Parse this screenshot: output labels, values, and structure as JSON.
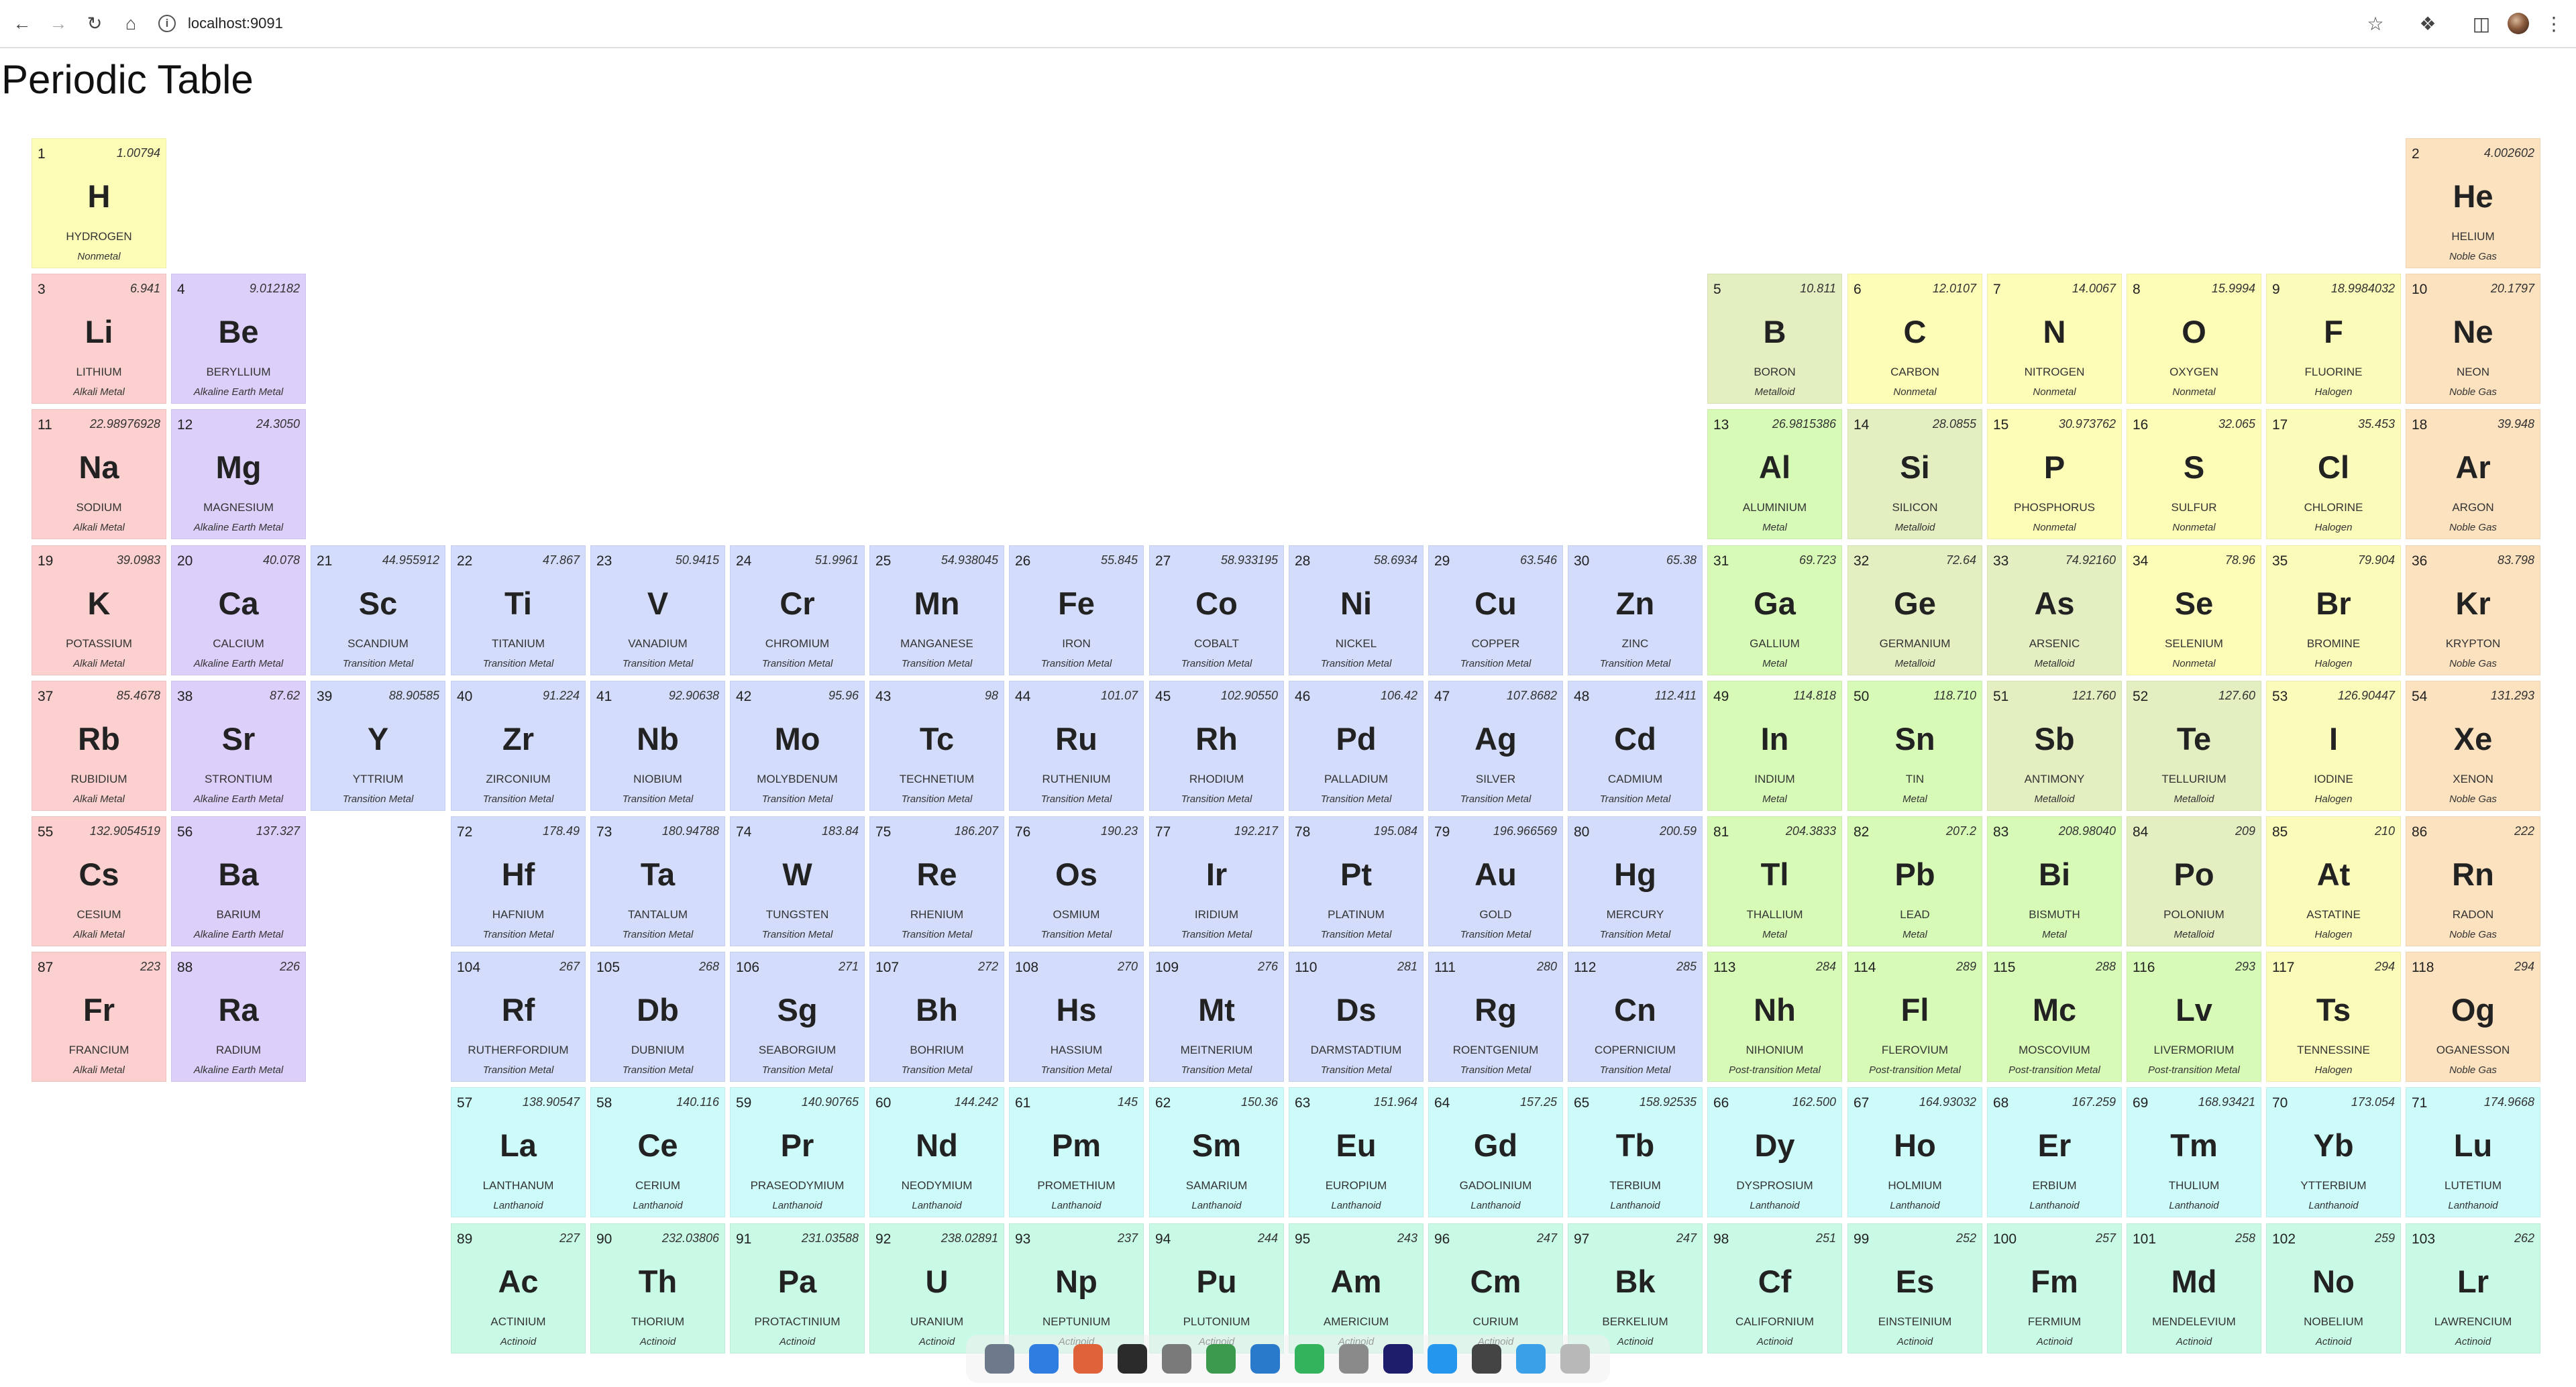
{
  "browser": {
    "url": "localhost:9091",
    "icons": {
      "back": "back-arrow-icon",
      "forward": "forward-arrow-icon",
      "reload": "reload-icon",
      "home": "home-icon",
      "site_info": "site-info-icon",
      "bookmark": "star-icon",
      "extensions": "puzzle-icon",
      "side_panel": "side-panel-icon",
      "profile": "avatar",
      "menu": "kebab-menu-icon"
    }
  },
  "page": {
    "title": "Periodic Table"
  },
  "category_colors": {
    "Nonmetal": "#fdfdb8",
    "Noble Gas": "#fde2bf",
    "Alkali Metal": "#fbd0ce",
    "Alkaline Earth Metal": "#dcd0fa",
    "Transition Metal": "#d3dcfb",
    "Metalloid": "#e3eec1",
    "Metal": "#d7fbb6",
    "Halogen": "#fbfcb9",
    "Post-transition Metal": "#d7fbb6",
    "Lanthanoid": "#ccfbf9",
    "Actinoid": "#c9fae6"
  },
  "elements": [
    {
      "n": "1",
      "s": "H",
      "name": "HYDROGEN",
      "m": "1.00794",
      "c": "Nonmetal",
      "g": 1,
      "p": 1
    },
    {
      "n": "2",
      "s": "He",
      "name": "HELIUM",
      "m": "4.002602",
      "c": "Noble Gas",
      "g": 18,
      "p": 1
    },
    {
      "n": "3",
      "s": "Li",
      "name": "LITHIUM",
      "m": "6.941",
      "c": "Alkali Metal",
      "g": 1,
      "p": 2
    },
    {
      "n": "4",
      "s": "Be",
      "name": "BERYLLIUM",
      "m": "9.012182",
      "c": "Alkaline Earth Metal",
      "g": 2,
      "p": 2
    },
    {
      "n": "5",
      "s": "B",
      "name": "BORON",
      "m": "10.811",
      "c": "Metalloid",
      "g": 13,
      "p": 2
    },
    {
      "n": "6",
      "s": "C",
      "name": "CARBON",
      "m": "12.0107",
      "c": "Nonmetal",
      "g": 14,
      "p": 2
    },
    {
      "n": "7",
      "s": "N",
      "name": "NITROGEN",
      "m": "14.0067",
      "c": "Nonmetal",
      "g": 15,
      "p": 2
    },
    {
      "n": "8",
      "s": "O",
      "name": "OXYGEN",
      "m": "15.9994",
      "c": "Nonmetal",
      "g": 16,
      "p": 2
    },
    {
      "n": "9",
      "s": "F",
      "name": "FLUORINE",
      "m": "18.9984032",
      "c": "Halogen",
      "g": 17,
      "p": 2
    },
    {
      "n": "10",
      "s": "Ne",
      "name": "NEON",
      "m": "20.1797",
      "c": "Noble Gas",
      "g": 18,
      "p": 2
    },
    {
      "n": "11",
      "s": "Na",
      "name": "SODIUM",
      "m": "22.98976928",
      "c": "Alkali Metal",
      "g": 1,
      "p": 3
    },
    {
      "n": "12",
      "s": "Mg",
      "name": "MAGNESIUM",
      "m": "24.3050",
      "c": "Alkaline Earth Metal",
      "g": 2,
      "p": 3
    },
    {
      "n": "13",
      "s": "Al",
      "name": "ALUMINIUM",
      "m": "26.9815386",
      "c": "Metal",
      "g": 13,
      "p": 3
    },
    {
      "n": "14",
      "s": "Si",
      "name": "SILICON",
      "m": "28.0855",
      "c": "Metalloid",
      "g": 14,
      "p": 3
    },
    {
      "n": "15",
      "s": "P",
      "name": "PHOSPHORUS",
      "m": "30.973762",
      "c": "Nonmetal",
      "g": 15,
      "p": 3
    },
    {
      "n": "16",
      "s": "S",
      "name": "SULFUR",
      "m": "32.065",
      "c": "Nonmetal",
      "g": 16,
      "p": 3
    },
    {
      "n": "17",
      "s": "Cl",
      "name": "CHLORINE",
      "m": "35.453",
      "c": "Halogen",
      "g": 17,
      "p": 3
    },
    {
      "n": "18",
      "s": "Ar",
      "name": "ARGON",
      "m": "39.948",
      "c": "Noble Gas",
      "g": 18,
      "p": 3
    },
    {
      "n": "19",
      "s": "K",
      "name": "POTASSIUM",
      "m": "39.0983",
      "c": "Alkali Metal",
      "g": 1,
      "p": 4
    },
    {
      "n": "20",
      "s": "Ca",
      "name": "CALCIUM",
      "m": "40.078",
      "c": "Alkaline Earth Metal",
      "g": 2,
      "p": 4
    },
    {
      "n": "21",
      "s": "Sc",
      "name": "SCANDIUM",
      "m": "44.955912",
      "c": "Transition Metal",
      "g": 3,
      "p": 4
    },
    {
      "n": "22",
      "s": "Ti",
      "name": "TITANIUM",
      "m": "47.867",
      "c": "Transition Metal",
      "g": 4,
      "p": 4
    },
    {
      "n": "23",
      "s": "V",
      "name": "VANADIUM",
      "m": "50.9415",
      "c": "Transition Metal",
      "g": 5,
      "p": 4
    },
    {
      "n": "24",
      "s": "Cr",
      "name": "CHROMIUM",
      "m": "51.9961",
      "c": "Transition Metal",
      "g": 6,
      "p": 4
    },
    {
      "n": "25",
      "s": "Mn",
      "name": "MANGANESE",
      "m": "54.938045",
      "c": "Transition Metal",
      "g": 7,
      "p": 4
    },
    {
      "n": "26",
      "s": "Fe",
      "name": "IRON",
      "m": "55.845",
      "c": "Transition Metal",
      "g": 8,
      "p": 4
    },
    {
      "n": "27",
      "s": "Co",
      "name": "COBALT",
      "m": "58.933195",
      "c": "Transition Metal",
      "g": 9,
      "p": 4
    },
    {
      "n": "28",
      "s": "Ni",
      "name": "NICKEL",
      "m": "58.6934",
      "c": "Transition Metal",
      "g": 10,
      "p": 4
    },
    {
      "n": "29",
      "s": "Cu",
      "name": "COPPER",
      "m": "63.546",
      "c": "Transition Metal",
      "g": 11,
      "p": 4
    },
    {
      "n": "30",
      "s": "Zn",
      "name": "ZINC",
      "m": "65.38",
      "c": "Transition Metal",
      "g": 12,
      "p": 4
    },
    {
      "n": "31",
      "s": "Ga",
      "name": "GALLIUM",
      "m": "69.723",
      "c": "Metal",
      "g": 13,
      "p": 4
    },
    {
      "n": "32",
      "s": "Ge",
      "name": "GERMANIUM",
      "m": "72.64",
      "c": "Metalloid",
      "g": 14,
      "p": 4
    },
    {
      "n": "33",
      "s": "As",
      "name": "ARSENIC",
      "m": "74.92160",
      "c": "Metalloid",
      "g": 15,
      "p": 4
    },
    {
      "n": "34",
      "s": "Se",
      "name": "SELENIUM",
      "m": "78.96",
      "c": "Nonmetal",
      "g": 16,
      "p": 4
    },
    {
      "n": "35",
      "s": "Br",
      "name": "BROMINE",
      "m": "79.904",
      "c": "Halogen",
      "g": 17,
      "p": 4
    },
    {
      "n": "36",
      "s": "Kr",
      "name": "KRYPTON",
      "m": "83.798",
      "c": "Noble Gas",
      "g": 18,
      "p": 4
    },
    {
      "n": "37",
      "s": "Rb",
      "name": "RUBIDIUM",
      "m": "85.4678",
      "c": "Alkali Metal",
      "g": 1,
      "p": 5
    },
    {
      "n": "38",
      "s": "Sr",
      "name": "STRONTIUM",
      "m": "87.62",
      "c": "Alkaline Earth Metal",
      "g": 2,
      "p": 5
    },
    {
      "n": "39",
      "s": "Y",
      "name": "YTTRIUM",
      "m": "88.90585",
      "c": "Transition Metal",
      "g": 3,
      "p": 5
    },
    {
      "n": "40",
      "s": "Zr",
      "name": "ZIRCONIUM",
      "m": "91.224",
      "c": "Transition Metal",
      "g": 4,
      "p": 5
    },
    {
      "n": "41",
      "s": "Nb",
      "name": "NIOBIUM",
      "m": "92.90638",
      "c": "Transition Metal",
      "g": 5,
      "p": 5
    },
    {
      "n": "42",
      "s": "Mo",
      "name": "MOLYBDENUM",
      "m": "95.96",
      "c": "Transition Metal",
      "g": 6,
      "p": 5
    },
    {
      "n": "43",
      "s": "Tc",
      "name": "TECHNETIUM",
      "m": "98",
      "c": "Transition Metal",
      "g": 7,
      "p": 5
    },
    {
      "n": "44",
      "s": "Ru",
      "name": "RUTHENIUM",
      "m": "101.07",
      "c": "Transition Metal",
      "g": 8,
      "p": 5
    },
    {
      "n": "45",
      "s": "Rh",
      "name": "RHODIUM",
      "m": "102.90550",
      "c": "Transition Metal",
      "g": 9,
      "p": 5
    },
    {
      "n": "46",
      "s": "Pd",
      "name": "PALLADIUM",
      "m": "106.42",
      "c": "Transition Metal",
      "g": 10,
      "p": 5
    },
    {
      "n": "47",
      "s": "Ag",
      "name": "SILVER",
      "m": "107.8682",
      "c": "Transition Metal",
      "g": 11,
      "p": 5
    },
    {
      "n": "48",
      "s": "Cd",
      "name": "CADMIUM",
      "m": "112.411",
      "c": "Transition Metal",
      "g": 12,
      "p": 5
    },
    {
      "n": "49",
      "s": "In",
      "name": "INDIUM",
      "m": "114.818",
      "c": "Metal",
      "g": 13,
      "p": 5
    },
    {
      "n": "50",
      "s": "Sn",
      "name": "TIN",
      "m": "118.710",
      "c": "Metal",
      "g": 14,
      "p": 5
    },
    {
      "n": "51",
      "s": "Sb",
      "name": "ANTIMONY",
      "m": "121.760",
      "c": "Metalloid",
      "g": 15,
      "p": 5
    },
    {
      "n": "52",
      "s": "Te",
      "name": "TELLURIUM",
      "m": "127.60",
      "c": "Metalloid",
      "g": 16,
      "p": 5
    },
    {
      "n": "53",
      "s": "I",
      "name": "IODINE",
      "m": "126.90447",
      "c": "Halogen",
      "g": 17,
      "p": 5
    },
    {
      "n": "54",
      "s": "Xe",
      "name": "XENON",
      "m": "131.293",
      "c": "Noble Gas",
      "g": 18,
      "p": 5
    },
    {
      "n": "55",
      "s": "Cs",
      "name": "CESIUM",
      "m": "132.9054519",
      "c": "Alkali Metal",
      "g": 1,
      "p": 6
    },
    {
      "n": "56",
      "s": "Ba",
      "name": "BARIUM",
      "m": "137.327",
      "c": "Alkaline Earth Metal",
      "g": 2,
      "p": 6
    },
    {
      "n": "72",
      "s": "Hf",
      "name": "HAFNIUM",
      "m": "178.49",
      "c": "Transition Metal",
      "g": 4,
      "p": 6
    },
    {
      "n": "73",
      "s": "Ta",
      "name": "TANTALUM",
      "m": "180.94788",
      "c": "Transition Metal",
      "g": 5,
      "p": 6
    },
    {
      "n": "74",
      "s": "W",
      "name": "TUNGSTEN",
      "m": "183.84",
      "c": "Transition Metal",
      "g": 6,
      "p": 6
    },
    {
      "n": "75",
      "s": "Re",
      "name": "RHENIUM",
      "m": "186.207",
      "c": "Transition Metal",
      "g": 7,
      "p": 6
    },
    {
      "n": "76",
      "s": "Os",
      "name": "OSMIUM",
      "m": "190.23",
      "c": "Transition Metal",
      "g": 8,
      "p": 6
    },
    {
      "n": "77",
      "s": "Ir",
      "name": "IRIDIUM",
      "m": "192.217",
      "c": "Transition Metal",
      "g": 9,
      "p": 6
    },
    {
      "n": "78",
      "s": "Pt",
      "name": "PLATINUM",
      "m": "195.084",
      "c": "Transition Metal",
      "g": 10,
      "p": 6
    },
    {
      "n": "79",
      "s": "Au",
      "name": "GOLD",
      "m": "196.966569",
      "c": "Transition Metal",
      "g": 11,
      "p": 6
    },
    {
      "n": "80",
      "s": "Hg",
      "name": "MERCURY",
      "m": "200.59",
      "c": "Transition Metal",
      "g": 12,
      "p": 6
    },
    {
      "n": "81",
      "s": "Tl",
      "name": "THALLIUM",
      "m": "204.3833",
      "c": "Metal",
      "g": 13,
      "p": 6
    },
    {
      "n": "82",
      "s": "Pb",
      "name": "LEAD",
      "m": "207.2",
      "c": "Metal",
      "g": 14,
      "p": 6
    },
    {
      "n": "83",
      "s": "Bi",
      "name": "BISMUTH",
      "m": "208.98040",
      "c": "Metal",
      "g": 15,
      "p": 6
    },
    {
      "n": "84",
      "s": "Po",
      "name": "POLONIUM",
      "m": "209",
      "c": "Metalloid",
      "g": 16,
      "p": 6
    },
    {
      "n": "85",
      "s": "At",
      "name": "ASTATINE",
      "m": "210",
      "c": "Halogen",
      "g": 17,
      "p": 6
    },
    {
      "n": "86",
      "s": "Rn",
      "name": "RADON",
      "m": "222",
      "c": "Noble Gas",
      "g": 18,
      "p": 6
    },
    {
      "n": "87",
      "s": "Fr",
      "name": "FRANCIUM",
      "m": "223",
      "c": "Alkali Metal",
      "g": 1,
      "p": 7
    },
    {
      "n": "88",
      "s": "Ra",
      "name": "RADIUM",
      "m": "226",
      "c": "Alkaline Earth Metal",
      "g": 2,
      "p": 7
    },
    {
      "n": "104",
      "s": "Rf",
      "name": "RUTHERFORDIUM",
      "m": "267",
      "c": "Transition Metal",
      "g": 4,
      "p": 7
    },
    {
      "n": "105",
      "s": "Db",
      "name": "DUBNIUM",
      "m": "268",
      "c": "Transition Metal",
      "g": 5,
      "p": 7
    },
    {
      "n": "106",
      "s": "Sg",
      "name": "SEABORGIUM",
      "m": "271",
      "c": "Transition Metal",
      "g": 6,
      "p": 7
    },
    {
      "n": "107",
      "s": "Bh",
      "name": "BOHRIUM",
      "m": "272",
      "c": "Transition Metal",
      "g": 7,
      "p": 7
    },
    {
      "n": "108",
      "s": "Hs",
      "name": "HASSIUM",
      "m": "270",
      "c": "Transition Metal",
      "g": 8,
      "p": 7
    },
    {
      "n": "109",
      "s": "Mt",
      "name": "MEITNERIUM",
      "m": "276",
      "c": "Transition Metal",
      "g": 9,
      "p": 7
    },
    {
      "n": "110",
      "s": "Ds",
      "name": "DARMSTADTIUM",
      "m": "281",
      "c": "Transition Metal",
      "g": 10,
      "p": 7
    },
    {
      "n": "111",
      "s": "Rg",
      "name": "ROENTGENIUM",
      "m": "280",
      "c": "Transition Metal",
      "g": 11,
      "p": 7
    },
    {
      "n": "112",
      "s": "Cn",
      "name": "COPERNICIUM",
      "m": "285",
      "c": "Transition Metal",
      "g": 12,
      "p": 7
    },
    {
      "n": "113",
      "s": "Nh",
      "name": "NIHONIUM",
      "m": "284",
      "c": "Post-transition Metal",
      "g": 13,
      "p": 7
    },
    {
      "n": "114",
      "s": "Fl",
      "name": "FLEROVIUM",
      "m": "289",
      "c": "Post-transition Metal",
      "g": 14,
      "p": 7
    },
    {
      "n": "115",
      "s": "Mc",
      "name": "MOSCOVIUM",
      "m": "288",
      "c": "Post-transition Metal",
      "g": 15,
      "p": 7
    },
    {
      "n": "116",
      "s": "Lv",
      "name": "LIVERMORIUM",
      "m": "293",
      "c": "Post-transition Metal",
      "g": 16,
      "p": 7
    },
    {
      "n": "117",
      "s": "Ts",
      "name": "TENNESSINE",
      "m": "294",
      "c": "Halogen",
      "g": 17,
      "p": 7
    },
    {
      "n": "118",
      "s": "Og",
      "name": "OGANESSON",
      "m": "294",
      "c": "Noble Gas",
      "g": 18,
      "p": 7
    },
    {
      "n": "57",
      "s": "La",
      "name": "LANTHANUM",
      "m": "138.90547",
      "c": "Lanthanoid",
      "g": 4,
      "p": 8
    },
    {
      "n": "58",
      "s": "Ce",
      "name": "CERIUM",
      "m": "140.116",
      "c": "Lanthanoid",
      "g": 5,
      "p": 8
    },
    {
      "n": "59",
      "s": "Pr",
      "name": "PRASEODYMIUM",
      "m": "140.90765",
      "c": "Lanthanoid",
      "g": 6,
      "p": 8
    },
    {
      "n": "60",
      "s": "Nd",
      "name": "NEODYMIUM",
      "m": "144.242",
      "c": "Lanthanoid",
      "g": 7,
      "p": 8
    },
    {
      "n": "61",
      "s": "Pm",
      "name": "PROMETHIUM",
      "m": "145",
      "c": "Lanthanoid",
      "g": 8,
      "p": 8
    },
    {
      "n": "62",
      "s": "Sm",
      "name": "SAMARIUM",
      "m": "150.36",
      "c": "Lanthanoid",
      "g": 9,
      "p": 8
    },
    {
      "n": "63",
      "s": "Eu",
      "name": "EUROPIUM",
      "m": "151.964",
      "c": "Lanthanoid",
      "g": 10,
      "p": 8
    },
    {
      "n": "64",
      "s": "Gd",
      "name": "GADOLINIUM",
      "m": "157.25",
      "c": "Lanthanoid",
      "g": 11,
      "p": 8
    },
    {
      "n": "65",
      "s": "Tb",
      "name": "TERBIUM",
      "m": "158.92535",
      "c": "Lanthanoid",
      "g": 12,
      "p": 8
    },
    {
      "n": "66",
      "s": "Dy",
      "name": "DYSPROSIUM",
      "m": "162.500",
      "c": "Lanthanoid",
      "g": 13,
      "p": 8
    },
    {
      "n": "67",
      "s": "Ho",
      "name": "HOLMIUM",
      "m": "164.93032",
      "c": "Lanthanoid",
      "g": 14,
      "p": 8
    },
    {
      "n": "68",
      "s": "Er",
      "name": "ERBIUM",
      "m": "167.259",
      "c": "Lanthanoid",
      "g": 15,
      "p": 8
    },
    {
      "n": "69",
      "s": "Tm",
      "name": "THULIUM",
      "m": "168.93421",
      "c": "Lanthanoid",
      "g": 16,
      "p": 8
    },
    {
      "n": "70",
      "s": "Yb",
      "name": "YTTERBIUM",
      "m": "173.054",
      "c": "Lanthanoid",
      "g": 17,
      "p": 8
    },
    {
      "n": "71",
      "s": "Lu",
      "name": "LUTETIUM",
      "m": "174.9668",
      "c": "Lanthanoid",
      "g": 18,
      "p": 8
    },
    {
      "n": "89",
      "s": "Ac",
      "name": "ACTINIUM",
      "m": "227",
      "c": "Actinoid",
      "g": 4,
      "p": 9
    },
    {
      "n": "90",
      "s": "Th",
      "name": "THORIUM",
      "m": "232.03806",
      "c": "Actinoid",
      "g": 5,
      "p": 9
    },
    {
      "n": "91",
      "s": "Pa",
      "name": "PROTACTINIUM",
      "m": "231.03588",
      "c": "Actinoid",
      "g": 6,
      "p": 9
    },
    {
      "n": "92",
      "s": "U",
      "name": "URANIUM",
      "m": "238.02891",
      "c": "Actinoid",
      "g": 7,
      "p": 9
    },
    {
      "n": "93",
      "s": "Np",
      "name": "NEPTUNIUM",
      "m": "237",
      "c": "Actinoid",
      "g": 8,
      "p": 9
    },
    {
      "n": "94",
      "s": "Pu",
      "name": "PLUTONIUM",
      "m": "244",
      "c": "Actinoid",
      "g": 9,
      "p": 9
    },
    {
      "n": "95",
      "s": "Am",
      "name": "AMERICIUM",
      "m": "243",
      "c": "Actinoid",
      "g": 10,
      "p": 9
    },
    {
      "n": "96",
      "s": "Cm",
      "name": "CURIUM",
      "m": "247",
      "c": "Actinoid",
      "g": 11,
      "p": 9
    },
    {
      "n": "97",
      "s": "Bk",
      "name": "BERKELIUM",
      "m": "247",
      "c": "Actinoid",
      "g": 12,
      "p": 9
    },
    {
      "n": "98",
      "s": "Cf",
      "name": "CALIFORNIUM",
      "m": "251",
      "c": "Actinoid",
      "g": 13,
      "p": 9
    },
    {
      "n": "99",
      "s": "Es",
      "name": "EINSTEINIUM",
      "m": "252",
      "c": "Actinoid",
      "g": 14,
      "p": 9
    },
    {
      "n": "100",
      "s": "Fm",
      "name": "FERMIUM",
      "m": "257",
      "c": "Actinoid",
      "g": 15,
      "p": 9
    },
    {
      "n": "101",
      "s": "Md",
      "name": "MENDELEVIUM",
      "m": "258",
      "c": "Actinoid",
      "g": 16,
      "p": 9
    },
    {
      "n": "102",
      "s": "No",
      "name": "NOBELIUM",
      "m": "259",
      "c": "Actinoid",
      "g": 17,
      "p": 9
    },
    {
      "n": "103",
      "s": "Lr",
      "name": "LAWRENCIUM",
      "m": "262",
      "c": "Actinoid",
      "g": 18,
      "p": 9
    }
  ],
  "dock": {
    "apps": [
      {
        "name": "launchpad-icon",
        "color": "#6c7a8c"
      },
      {
        "name": "finder-icon",
        "color": "#2f7de0"
      },
      {
        "name": "firefox-icon",
        "color": "#e0623a"
      },
      {
        "name": "terminal-icon",
        "color": "#2b2b2b"
      },
      {
        "name": "settings-icon",
        "color": "#7a7a7a"
      },
      {
        "name": "chrome-icon",
        "color": "#3c9a4f"
      },
      {
        "name": "vscode-icon",
        "color": "#2a7acb"
      },
      {
        "name": "chat-icon",
        "color": "#32b35c"
      },
      {
        "name": "editor-icon",
        "color": "#8a8a8a"
      },
      {
        "name": "intellij-icon",
        "color": "#1d1d6b"
      },
      {
        "name": "docker-icon",
        "color": "#2496ed"
      },
      {
        "name": "calculator-icon",
        "color": "#444444"
      },
      {
        "name": "folder-icon",
        "color": "#3aa0e8"
      },
      {
        "name": "trash-icon",
        "color": "#b8b8b8"
      }
    ]
  }
}
